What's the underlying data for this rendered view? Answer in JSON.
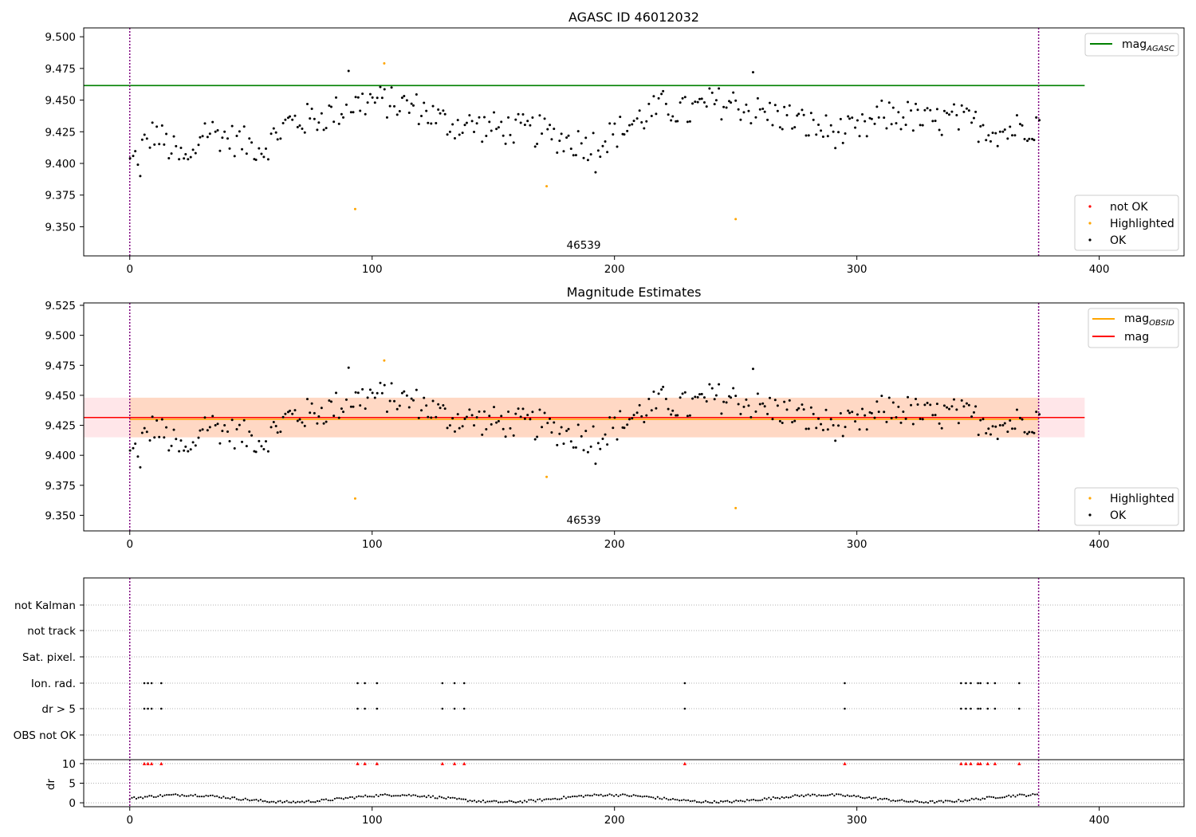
{
  "chart_data": [
    {
      "type": "scatter",
      "title": "AGASC ID 46012032",
      "xlim": [
        -19,
        435
      ],
      "ylim": [
        9.327,
        9.507
      ],
      "xticks": [
        "0",
        "100",
        "200",
        "300",
        "400"
      ],
      "yticks": [
        "9.350",
        "9.375",
        "9.400",
        "9.425",
        "9.450",
        "9.475",
        "9.500"
      ],
      "grid": false,
      "obsid_label": "46539",
      "obs_bounds": [
        0,
        375
      ],
      "colors": {
        "ok": "#000000",
        "highlighted": "#ffa500",
        "not_ok": "#ff0000",
        "mag_agasc": "#008000",
        "obs_bounds": "#800080"
      },
      "mag_agasc_line": {
        "name": "mag_AGASC",
        "value": 9.4615,
        "x_range": [
          -19,
          394
        ]
      },
      "legend_lines": {
        "position": "top-right",
        "entries": [
          {
            "label": "mag",
            "subscript": "AGASC"
          }
        ]
      },
      "legend_points": {
        "position": "bottom-right",
        "entries": [
          "not OK",
          "Highlighted",
          "OK"
        ]
      },
      "highlighted_points": [
        {
          "x": 93,
          "y": 9.364
        },
        {
          "x": 105,
          "y": 9.479
        },
        {
          "x": 172,
          "y": 9.382
        },
        {
          "x": 250,
          "y": 9.356
        }
      ],
      "ok_points_summary": "about 370 OK points, x from 0 to 375, y between 9.39 and 9.473"
    },
    {
      "type": "scatter",
      "title": "Magnitude Estimates",
      "xlim": [
        -19,
        435
      ],
      "ylim": [
        9.337,
        9.527
      ],
      "xticks": [
        "0",
        "100",
        "200",
        "300",
        "400"
      ],
      "yticks": [
        "9.350",
        "9.375",
        "9.400",
        "9.425",
        "9.450",
        "9.475",
        "9.500",
        "9.525"
      ],
      "grid": false,
      "obsid_label": "46539",
      "obs_bounds": [
        0,
        375
      ],
      "mag_line": {
        "name": "mag",
        "value": 9.4315,
        "color": "#ff0000",
        "band": [
          9.415,
          9.448
        ],
        "band_color": "#ffb6c1",
        "x_range": [
          -19,
          394
        ]
      },
      "mag_obsid_line": {
        "name": "mag_OBSID",
        "value": 9.431,
        "color": "#ffa500",
        "band": [
          9.415,
          9.448
        ],
        "band_color": "#ffc896",
        "x_range": [
          0,
          375
        ]
      },
      "legend_lines": {
        "position": "top-right",
        "entries": [
          {
            "label": "mag",
            "subscript": "OBSID"
          },
          {
            "label": "mag",
            "subscript": ""
          }
        ]
      },
      "legend_points": {
        "position": "bottom-right",
        "entries": [
          "Highlighted",
          "OK"
        ]
      },
      "highlighted_points": [
        {
          "x": 93,
          "y": 9.364
        },
        {
          "x": 105,
          "y": 9.479
        },
        {
          "x": 172,
          "y": 9.382
        },
        {
          "x": 250,
          "y": 9.356
        }
      ]
    },
    {
      "type": "scatter",
      "xlim": [
        -19,
        435
      ],
      "xticks": [
        "0",
        "100",
        "200",
        "300",
        "400"
      ],
      "flag_labels": [
        "not Kalman",
        "not track",
        "Sat. pixel.",
        "Ion. rad.",
        "dr > 5",
        "OBS not OK"
      ],
      "flags": {
        "Ion. rad.": [
          6,
          7.5,
          9,
          13,
          94,
          97,
          102,
          129,
          134,
          138,
          229,
          295,
          343,
          345,
          347,
          350,
          351,
          354,
          357,
          367
        ],
        "dr > 5": [
          6,
          7.5,
          9,
          13,
          94,
          97,
          102,
          129,
          134,
          138,
          229,
          295,
          343,
          345,
          347,
          350,
          351,
          354,
          357,
          367
        ]
      },
      "dr_axis": {
        "ylabel": "dr",
        "yticks": [
          "0",
          "5",
          "10"
        ],
        "ylim": [
          -1,
          11
        ],
        "threshold": 10
      },
      "dr_exceed_x": [
        6,
        7.5,
        9,
        13,
        94,
        97,
        102,
        129,
        134,
        138,
        229,
        295,
        343,
        345,
        347,
        350,
        351,
        354,
        357,
        367
      ]
    }
  ]
}
